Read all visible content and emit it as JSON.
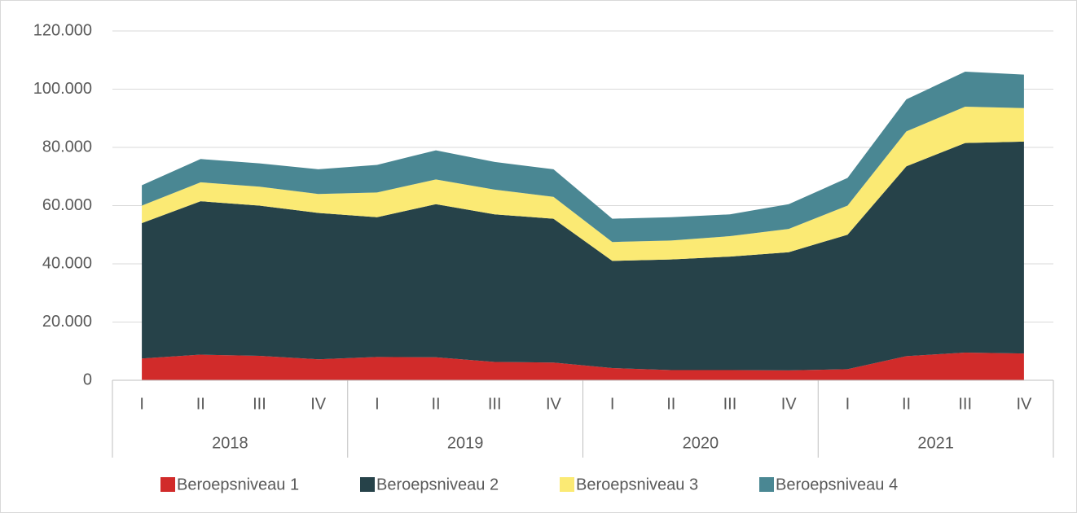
{
  "chart_data": {
    "type": "stacked_area",
    "categories": [
      "I",
      "II",
      "III",
      "IV",
      "I",
      "II",
      "III",
      "IV",
      "I",
      "II",
      "III",
      "IV",
      "I",
      "II",
      "III",
      "IV"
    ],
    "category_groups": [
      "2018",
      "2019",
      "2020",
      "2021"
    ],
    "ylim": [
      0,
      120000
    ],
    "yticks": [
      0,
      {
        "value": 20000,
        "label": "20.000"
      },
      {
        "value": 40000,
        "label": "40.000"
      },
      {
        "value": 60000,
        "label": "60.000"
      },
      {
        "value": 80000,
        "label": "80.000"
      },
      {
        "value": 100000,
        "label": "100.000"
      },
      {
        "value": 120000,
        "label": "120.000"
      }
    ],
    "grid": true,
    "legend": "bottom",
    "series": [
      {
        "name": "Beroepsniveau 1",
        "color": "#d12b2a",
        "values": [
          7500,
          8800,
          8400,
          7200,
          8000,
          7900,
          6300,
          6100,
          4200,
          3500,
          3500,
          3400,
          3800,
          8300,
          9500,
          9200
        ]
      },
      {
        "name": "Beroepsniveau 2",
        "color": "#264249",
        "values": [
          46500,
          52700,
          51600,
          50300,
          48000,
          52600,
          50700,
          49400,
          36800,
          38000,
          39000,
          40600,
          46200,
          65200,
          72000,
          72800
        ]
      },
      {
        "name": "Beroepsniveau 3",
        "color": "#fbea74",
        "values": [
          6000,
          6500,
          6500,
          6500,
          8500,
          8500,
          8500,
          7500,
          6500,
          6500,
          7000,
          8000,
          10000,
          12000,
          12500,
          11500
        ]
      },
      {
        "name": "Beroepsniveau 4",
        "color": "#4a8793",
        "values": [
          7000,
          8000,
          8000,
          8500,
          9500,
          10000,
          9500,
          9500,
          8000,
          8000,
          7500,
          8500,
          9500,
          11000,
          12000,
          11500
        ]
      }
    ]
  }
}
